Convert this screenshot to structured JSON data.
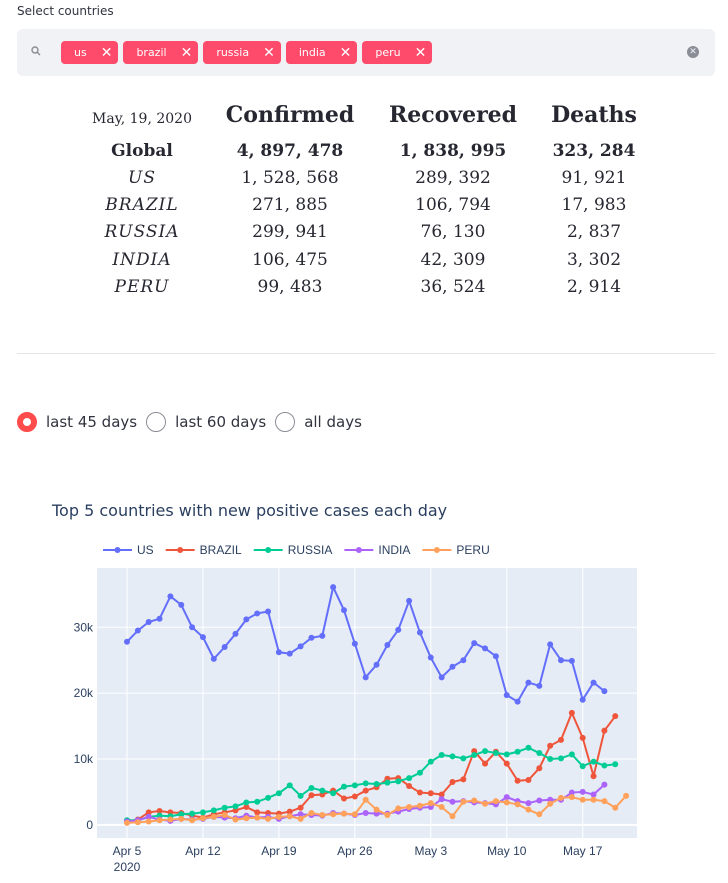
{
  "select_label": "Select countries",
  "tags": [
    "us",
    "brazil",
    "russia",
    "india",
    "peru"
  ],
  "icons": {
    "search": "search-icon",
    "tag_remove": "close-icon",
    "clear": "clear-all-icon"
  },
  "table": {
    "date": "May, 19, 2020",
    "headers": [
      "Confirmed",
      "Recovered",
      "Deaths"
    ],
    "rows": [
      {
        "name": "Global",
        "confirmed": "4, 897, 478",
        "recovered": "1, 838, 995",
        "deaths": "323, 284"
      },
      {
        "name": "US",
        "confirmed": "1, 528, 568",
        "recovered": "289, 392",
        "deaths": "91, 921"
      },
      {
        "name": "BRAZIL",
        "confirmed": "271, 885",
        "recovered": "106, 794",
        "deaths": "17, 983"
      },
      {
        "name": "RUSSIA",
        "confirmed": "299, 941",
        "recovered": "76, 130",
        "deaths": "2, 837"
      },
      {
        "name": "INDIA",
        "confirmed": "106, 475",
        "recovered": "42, 309",
        "deaths": "3, 302"
      },
      {
        "name": "PERU",
        "confirmed": "99, 483",
        "recovered": "36, 524",
        "deaths": "2, 914"
      }
    ]
  },
  "radio": {
    "options": [
      "last 45 days",
      "last 60 days",
      "all days"
    ],
    "selected": "last 45 days"
  },
  "colors": {
    "accent": "#ff4b6b",
    "plot_bg": "#e5ecf6"
  },
  "chart_data": {
    "type": "line",
    "title": "Top 5 countries with new positive cases each day",
    "x_start": "2020-04-05",
    "x_ticks": [
      "Apr 5",
      "Apr 12",
      "Apr 19",
      "Apr 26",
      "May 3",
      "May 10",
      "May 17"
    ],
    "x_tick_year": "2020",
    "y_ticks": [
      "0",
      "10k",
      "20k",
      "30k"
    ],
    "ylim": [
      -2000,
      39000
    ],
    "legend_position": "top-left",
    "series": [
      {
        "name": "US",
        "color": "#636efa",
        "values": [
          27800,
          29500,
          30800,
          31300,
          34700,
          33400,
          30000,
          28500,
          25200,
          27000,
          29000,
          31200,
          32100,
          32400,
          26200,
          26000,
          27100,
          28400,
          28700,
          36100,
          32600,
          27500,
          22400,
          24300,
          27300,
          29600,
          34000,
          29200,
          25400,
          22400,
          24000,
          25000,
          27600,
          26800,
          25600,
          19700,
          18700,
          21600,
          21100,
          27400,
          25000,
          24900,
          19000,
          21600,
          20300
        ]
      },
      {
        "name": "BRAZIL",
        "color": "#ef553b",
        "values": [
          500,
          800,
          1900,
          2100,
          1900,
          1800,
          1400,
          1100,
          1600,
          1900,
          2200,
          2700,
          1900,
          1800,
          1700,
          2000,
          2600,
          4500,
          4600,
          5200,
          4000,
          4300,
          5200,
          5700,
          7000,
          7100,
          5900,
          4900,
          4800,
          4600,
          6500,
          6900,
          11200,
          9300,
          11100,
          9300,
          6700,
          6800,
          8600,
          12000,
          12900,
          17000,
          13200,
          7400,
          14300,
          16500
        ]
      },
      {
        "name": "RUSSIA",
        "color": "#00cc96",
        "values": [
          700,
          700,
          1200,
          1400,
          1300,
          1600,
          1700,
          1900,
          2200,
          2600,
          2800,
          3400,
          3500,
          4100,
          4800,
          6000,
          4400,
          5600,
          5200,
          4800,
          5800,
          6000,
          6300,
          6200,
          6400,
          6600,
          7100,
          7900,
          9600,
          10600,
          10400,
          10100,
          10600,
          11200,
          10900,
          10700,
          11100,
          11700,
          10900,
          10000,
          10100,
          10700,
          8900,
          9600,
          9000,
          9200
        ]
      },
      {
        "name": "INDIA",
        "color": "#ab63fa",
        "values": [
          500,
          700,
          1200,
          800,
          600,
          900,
          800,
          900,
          1200,
          1100,
          1000,
          1400,
          1100,
          1200,
          900,
          1300,
          1600,
          1500,
          1400,
          1800,
          1700,
          1500,
          1800,
          1700,
          1700,
          2000,
          2400,
          2600,
          2700,
          3900,
          3500,
          3600,
          3400,
          3300,
          3100,
          4200,
          3600,
          3300,
          3700,
          3800,
          3800,
          4900,
          5000,
          4600,
          6100
        ]
      },
      {
        "name": "PERU",
        "color": "#ffa15a",
        "values": [
          300,
          400,
          500,
          700,
          800,
          900,
          700,
          1000,
          1200,
          1500,
          800,
          1000,
          1100,
          900,
          1200,
          1300,
          900,
          1800,
          1500,
          1600,
          1700,
          1600,
          3800,
          2300,
          1500,
          2500,
          2700,
          2900,
          3300,
          2700,
          1300,
          3500,
          3700,
          3200,
          3600,
          3400,
          3100,
          2300,
          1600,
          3200,
          4100,
          4200,
          3800,
          3800,
          3600,
          2600,
          4400
        ]
      }
    ]
  }
}
